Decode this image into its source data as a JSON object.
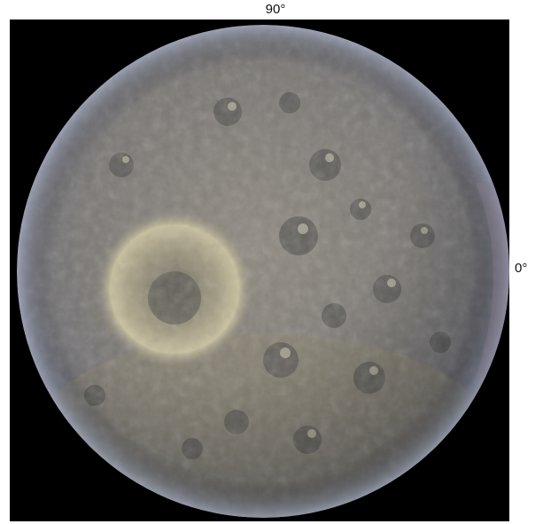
{
  "labels": {
    "top": "90°",
    "right": "0°",
    "left": "°"
  },
  "colors": {
    "panel_background": "#000000",
    "surface_base": "#7d7a78",
    "surface_highlight": "#c9c1a0",
    "surface_shadow": "#3c3b3a",
    "limb_tint": "#8a96b4"
  }
}
